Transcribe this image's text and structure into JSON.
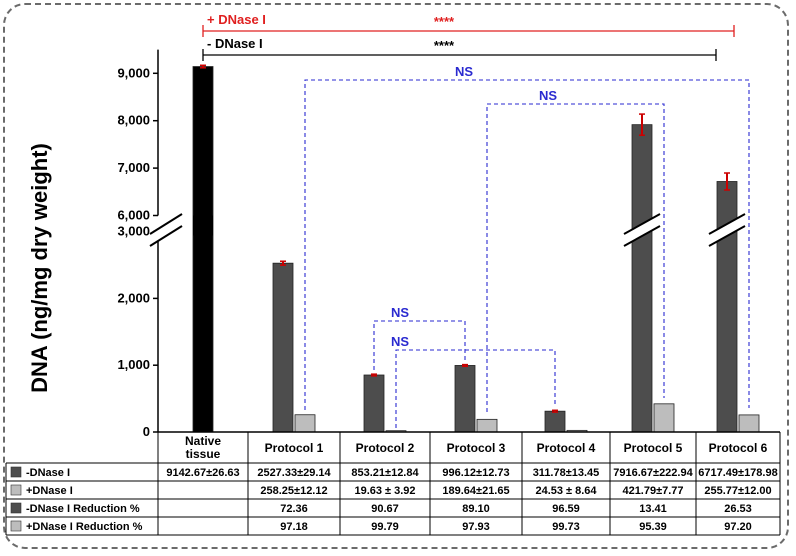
{
  "chart_data": {
    "type": "bar",
    "ylabel": "DNA (ng/mg dry weight)",
    "categories": [
      "Native tissue",
      "Protocol 1",
      "Protocol 2",
      "Protocol 3",
      "Protocol 4",
      "Protocol 5",
      "Protocol 6"
    ],
    "axis_break": {
      "from": 3000,
      "to": 6000
    },
    "lower_ticks": [
      "0",
      "1,000",
      "2,000",
      "3,000"
    ],
    "upper_ticks": [
      "6,000",
      "7,000",
      "8,000",
      "9,000"
    ],
    "series": [
      {
        "name": "-DNase I",
        "color": "#4d4d4d",
        "first_color": "#000000",
        "values": [
          9142.67,
          2527.33,
          853.21,
          996.12,
          311.78,
          7916.67,
          6717.49
        ],
        "errors": [
          26.63,
          29.14,
          12.84,
          12.73,
          13.45,
          222.94,
          178.98
        ]
      },
      {
        "name": "+DNase I",
        "color": "#bdbdbd",
        "values": [
          null,
          258.25,
          19.63,
          189.64,
          24.53,
          421.79,
          255.77
        ],
        "errors": [
          null,
          12.12,
          3.92,
          21.65,
          8.64,
          7.77,
          12.0
        ]
      }
    ],
    "error_bar_color": "#cc0000",
    "significance": [
      {
        "label": "+ DNase I",
        "stars": "****",
        "color": "#e02020"
      },
      {
        "label": "- DNase I",
        "stars": "****",
        "color": "#000000"
      },
      {
        "label": "NS",
        "color": "#2a2ad0"
      },
      {
        "label": "NS",
        "color": "#2a2ad0"
      },
      {
        "label": "NS",
        "color": "#2a2ad0"
      },
      {
        "label": "NS",
        "color": "#2a2ad0"
      }
    ],
    "table": {
      "rows": [
        {
          "label": "-DNase I",
          "swatch": "#4d4d4d",
          "cells": [
            "9142.67±26.63",
            "2527.33±29.14",
            "853.21±12.84",
            "996.12±12.73",
            "311.78±13.45",
            "7916.67±222.94",
            "6717.49±178.98"
          ]
        },
        {
          "label": "+DNase I",
          "swatch": "#bdbdbd",
          "cells": [
            "",
            "258.25±12.12",
            "19.63 ± 3.92",
            "189.64±21.65",
            "24.53 ± 8.64",
            "421.79±7.77",
            "255.77±12.00"
          ]
        },
        {
          "label": "-DNase I Reduction %",
          "swatch": "#4d4d4d",
          "cells": [
            "",
            "72.36",
            "90.67",
            "89.10",
            "96.59",
            "13.41",
            "26.53"
          ]
        },
        {
          "label": "+DNase I Reduction %",
          "swatch": "#bdbdbd",
          "cells": [
            "",
            "97.18",
            "99.79",
            "97.93",
            "99.73",
            "95.39",
            "97.20"
          ]
        }
      ]
    }
  }
}
